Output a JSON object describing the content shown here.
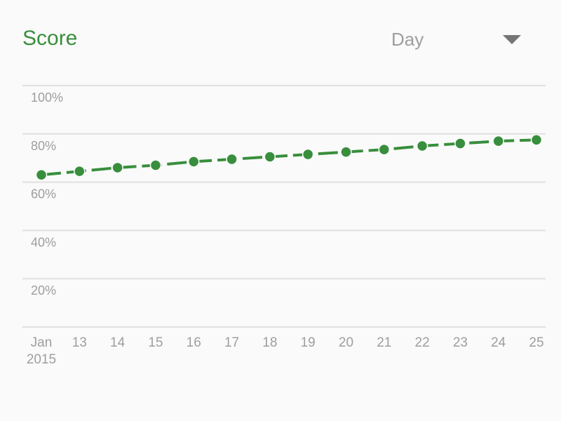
{
  "header": {
    "title": "Score",
    "range_selected": "Day",
    "dropdown_icon": "arrow-drop-down-icon"
  },
  "colors": {
    "accent": "#388e3c",
    "grid": "#e0e0e0",
    "label": "#9e9e9e",
    "dropdown_icon": "#757575",
    "background": "#fafafa"
  },
  "chart_data": {
    "type": "line",
    "title": "",
    "xlabel": "",
    "ylabel": "",
    "categories": [
      "Jan",
      "13",
      "14",
      "15",
      "16",
      "17",
      "18",
      "19",
      "20",
      "21",
      "22",
      "23",
      "24",
      "25"
    ],
    "year_label": "2015",
    "series": [
      {
        "values": [
          63,
          64.5,
          66,
          67,
          68.5,
          69.5,
          70.5,
          71.5,
          72.5,
          73.5,
          75,
          76,
          77,
          77.5
        ]
      }
    ],
    "ylim": [
      0,
      100
    ],
    "yticks": [
      20,
      40,
      60,
      80,
      100
    ],
    "ytick_labels": [
      "20%",
      "40%",
      "60%",
      "80%",
      "100%"
    ],
    "grid": true,
    "line_style": "dashed",
    "legend": "none"
  }
}
